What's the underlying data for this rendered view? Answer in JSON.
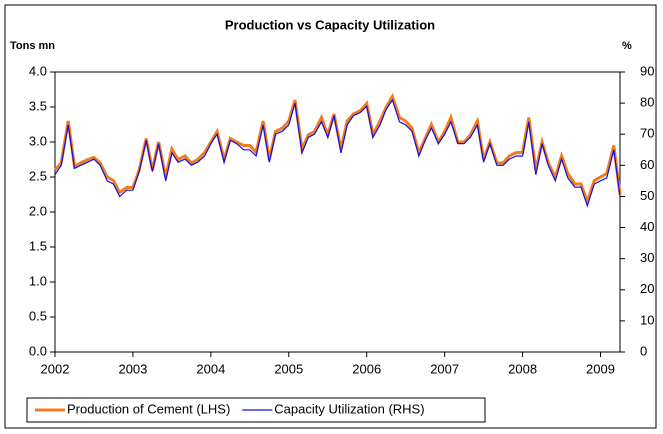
{
  "chart_data": {
    "type": "line",
    "title": "Production vs Capacity Utilization",
    "ylabel": "Tons mn",
    "y2label": "%",
    "x": [
      2002,
      2002.08,
      2002.17,
      2002.25,
      2002.33,
      2002.42,
      2002.5,
      2002.58,
      2002.67,
      2002.75,
      2002.83,
      2002.92,
      2003,
      2003.08,
      2003.17,
      2003.25,
      2003.33,
      2003.42,
      2003.5,
      2003.58,
      2003.67,
      2003.75,
      2003.83,
      2003.92,
      2004,
      2004.08,
      2004.17,
      2004.25,
      2004.33,
      2004.42,
      2004.5,
      2004.58,
      2004.67,
      2004.75,
      2004.83,
      2004.92,
      2005,
      2005.08,
      2005.17,
      2005.25,
      2005.33,
      2005.42,
      2005.5,
      2005.58,
      2005.67,
      2005.75,
      2005.83,
      2005.92,
      2006,
      2006.08,
      2006.17,
      2006.25,
      2006.33,
      2006.42,
      2006.5,
      2006.58,
      2006.67,
      2006.75,
      2006.83,
      2006.92,
      2007,
      2007.08,
      2007.17,
      2007.25,
      2007.33,
      2007.42,
      2007.5,
      2007.58,
      2007.67,
      2007.75,
      2007.83,
      2007.92,
      2008,
      2008.08,
      2008.17,
      2008.25,
      2008.33,
      2008.42,
      2008.5,
      2008.58,
      2008.67,
      2008.75,
      2008.83,
      2008.92,
      2009,
      2009.08,
      2009.17,
      2009.25
    ],
    "series": [
      {
        "name": "Production of Cement (LHS)",
        "color": "#f47a20",
        "axis": "y",
        "values": [
          2.6,
          2.7,
          3.3,
          2.65,
          2.7,
          2.75,
          2.78,
          2.7,
          2.5,
          2.45,
          2.28,
          2.35,
          2.35,
          2.6,
          3.05,
          2.6,
          3.0,
          2.5,
          2.9,
          2.75,
          2.8,
          2.7,
          2.75,
          2.85,
          3.0,
          3.15,
          2.75,
          3.05,
          3.0,
          2.95,
          2.95,
          2.85,
          3.3,
          2.75,
          3.15,
          3.2,
          3.3,
          3.6,
          2.9,
          3.1,
          3.15,
          3.35,
          3.1,
          3.4,
          2.9,
          3.3,
          3.4,
          3.45,
          3.55,
          3.1,
          3.3,
          3.5,
          3.65,
          3.35,
          3.3,
          3.2,
          2.85,
          3.05,
          3.25,
          3.0,
          3.15,
          3.35,
          3.0,
          3.0,
          3.1,
          3.3,
          2.75,
          3.0,
          2.7,
          2.7,
          2.8,
          2.85,
          2.85,
          3.35,
          2.6,
          3.0,
          2.7,
          2.5,
          2.8,
          2.55,
          2.4,
          2.4,
          2.15,
          2.45,
          2.5,
          2.55,
          2.95,
          2.25
        ]
      },
      {
        "name": "Capacity Utilization (RHS)",
        "color": "#1010e0",
        "axis": "y2",
        "values": [
          57,
          60,
          73,
          59,
          60,
          61,
          62,
          60,
          55,
          54,
          50,
          52,
          52,
          58,
          68,
          58,
          67,
          55,
          64,
          61,
          62,
          60,
          61,
          63,
          67,
          70,
          61,
          68,
          67,
          65,
          65,
          63,
          73,
          61,
          70,
          71,
          73,
          80,
          64,
          69,
          70,
          74,
          69,
          76,
          64,
          73,
          76,
          77,
          79,
          69,
          73,
          78,
          81,
          74,
          73,
          71,
          63,
          68,
          72,
          67,
          70,
          74,
          67,
          67,
          69,
          73,
          61,
          67,
          60,
          60,
          62,
          63,
          63,
          74,
          57,
          67,
          60,
          55,
          62,
          56,
          53,
          53,
          47,
          54,
          55,
          56,
          65,
          50
        ]
      }
    ],
    "xlim": [
      2002,
      2009.25
    ],
    "xticks": [
      2002,
      2003,
      2004,
      2005,
      2006,
      2007,
      2008,
      2009
    ],
    "ylim": [
      0,
      4
    ],
    "yticks": [
      {
        "value": 0,
        "label": "0.0"
      },
      {
        "value": 0.5,
        "label": "0.5"
      },
      {
        "value": 1,
        "label": "1.0"
      },
      {
        "value": 1.5,
        "label": "1.5"
      },
      {
        "value": 2,
        "label": "2.0"
      },
      {
        "value": 2.5,
        "label": "2.5"
      },
      {
        "value": 3,
        "label": "3.0"
      },
      {
        "value": 3.5,
        "label": "3.5"
      },
      {
        "value": 4,
        "label": "4.0"
      }
    ],
    "y2lim": [
      0,
      90
    ],
    "y2ticks": [
      0,
      10,
      20,
      30,
      40,
      50,
      60,
      70,
      80,
      90
    ],
    "legend": "bottom"
  }
}
